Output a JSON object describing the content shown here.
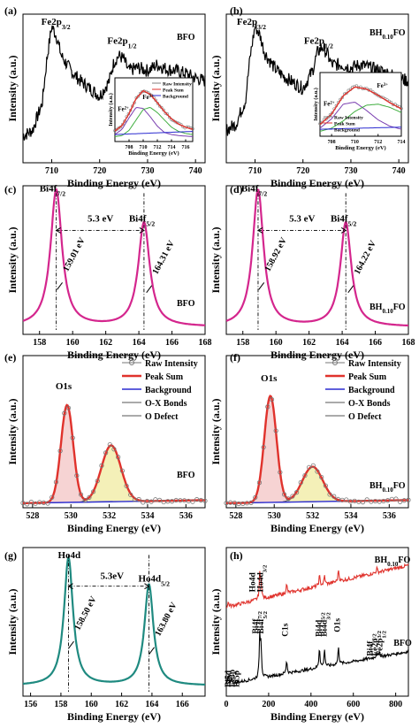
{
  "figure": {
    "axis_xlabel": "Binding Energy (eV)",
    "axis_ylabel": "Intensity (a.u.)"
  },
  "chart_data": [
    {
      "id": "a",
      "type": "line",
      "panel_label": "(a)",
      "sample_label": "BFO",
      "xlabel": "Binding Energy (eV)",
      "ylabel": "Intensity (a.u.)",
      "xlim": [
        704,
        742
      ],
      "ylim": [
        0,
        1
      ],
      "xticks": [
        710,
        720,
        730,
        740
      ],
      "annotations": [
        {
          "text": "Fe2p",
          "sub": "3/2",
          "x": 707.8,
          "y": 0.93
        },
        {
          "text": "Fe2p",
          "sub": "1/2",
          "x": 721.6,
          "y": 0.8
        }
      ],
      "series": [
        {
          "color": "#000000",
          "noise": 0.045,
          "x": [
            704,
            706,
            708,
            709,
            710,
            711,
            712,
            714,
            716,
            718,
            720,
            722,
            723,
            724,
            725,
            726,
            728,
            730,
            732,
            734,
            736,
            738,
            740,
            742
          ],
          "y": [
            0.18,
            0.22,
            0.4,
            0.7,
            0.92,
            0.85,
            0.72,
            0.62,
            0.55,
            0.5,
            0.45,
            0.55,
            0.68,
            0.72,
            0.7,
            0.62,
            0.64,
            0.62,
            0.66,
            0.63,
            0.62,
            0.6,
            0.57,
            0.55
          ]
        }
      ],
      "inset": {
        "xlim": [
          706,
          717
        ],
        "xticks": [
          708,
          710,
          712,
          714,
          716
        ],
        "xlabel": "Binding Energy (eV)",
        "ylabel": "Intensity (a.u.)",
        "legend": [
          "Raw Intensity",
          "Peak Sum",
          "Background"
        ],
        "labels": [
          {
            "text": "Fe",
            "sup": "2+",
            "x": 706.4,
            "y": 0.55
          },
          {
            "text": "Fe",
            "sup": "3+",
            "x": 709.9,
            "y": 0.78
          }
        ],
        "curves": [
          {
            "color": "#808080",
            "style": "circles",
            "x": [
              706,
              707,
              708,
              709,
              710,
              711,
              712,
              713,
              714,
              715,
              716,
              717
            ],
            "y": [
              0.18,
              0.28,
              0.5,
              0.8,
              0.95,
              0.88,
              0.72,
              0.55,
              0.4,
              0.3,
              0.24,
              0.2
            ]
          },
          {
            "color": "#e0322c",
            "x": [
              706,
              707,
              708,
              709,
              710,
              711,
              712,
              713,
              714,
              715,
              716,
              717
            ],
            "y": [
              0.17,
              0.27,
              0.5,
              0.79,
              0.94,
              0.87,
              0.71,
              0.54,
              0.4,
              0.3,
              0.24,
              0.2
            ]
          },
          {
            "color": "#7a3fb0",
            "x": [
              706,
              707,
              708,
              709,
              710,
              711,
              712,
              713,
              714,
              715,
              716,
              717
            ],
            "y": [
              0.1,
              0.2,
              0.42,
              0.62,
              0.6,
              0.44,
              0.26,
              0.14,
              0.1,
              0.08,
              0.07,
              0.06
            ]
          },
          {
            "color": "#3fae3f",
            "x": [
              706,
              707,
              708,
              709,
              710,
              711,
              712,
              713,
              714,
              715,
              716,
              717
            ],
            "y": [
              0.06,
              0.08,
              0.18,
              0.38,
              0.58,
              0.62,
              0.52,
              0.38,
              0.24,
              0.16,
              0.12,
              0.1
            ]
          },
          {
            "color": "#2a2ad0",
            "x": [
              706,
              717
            ],
            "y": [
              0.1,
              0.16
            ]
          }
        ]
      }
    },
    {
      "id": "b",
      "type": "line",
      "panel_label": "(b)",
      "sample_label": "BH",
      "sample_label_sub": "0.10",
      "sample_label_tail": "FO",
      "xlabel": "Binding Energy (eV)",
      "ylabel": "Intensity (a.u.)",
      "xlim": [
        704,
        742
      ],
      "ylim": [
        0,
        1
      ],
      "xticks": [
        710,
        720,
        730,
        740
      ],
      "annotations": [
        {
          "text": "Fe2p",
          "sub": "3/2",
          "x": 706.2,
          "y": 0.93
        },
        {
          "text": "Fe2p",
          "sub": "1/2",
          "x": 720.2,
          "y": 0.8
        }
      ],
      "series": [
        {
          "color": "#000000",
          "noise": 0.045,
          "x": [
            704,
            706,
            708,
            709,
            710,
            711,
            712,
            714,
            716,
            718,
            720,
            722,
            723,
            724,
            725,
            726,
            728,
            730,
            732,
            734,
            736,
            738,
            740,
            742
          ],
          "y": [
            0.22,
            0.26,
            0.42,
            0.72,
            0.92,
            0.86,
            0.74,
            0.64,
            0.58,
            0.54,
            0.5,
            0.62,
            0.74,
            0.78,
            0.74,
            0.66,
            0.66,
            0.64,
            0.66,
            0.64,
            0.62,
            0.6,
            0.57,
            0.55
          ]
        }
      ],
      "inset": {
        "xlim": [
          707,
          714
        ],
        "xticks": [
          708,
          710,
          712,
          714
        ],
        "xlabel": "Binding Energy (eV)",
        "ylabel": "Intensity (a.u.)",
        "legend": [
          "Raw Intensity",
          "Peak Sum",
          "Background"
        ],
        "labels": [
          {
            "text": "Fe",
            "sup": "2+",
            "x": 707.3,
            "y": 0.55
          },
          {
            "text": "Fe",
            "sup": "3+",
            "x": 711.9,
            "y": 0.9
          }
        ],
        "curves": [
          {
            "color": "#808080",
            "style": "circles",
            "x": [
              707,
              708,
              709,
              710,
              711,
              712,
              713,
              714
            ],
            "y": [
              0.2,
              0.4,
              0.75,
              0.92,
              0.88,
              0.76,
              0.62,
              0.5
            ]
          },
          {
            "color": "#e0322c",
            "x": [
              707,
              708,
              709,
              710,
              711,
              712,
              713,
              714
            ],
            "y": [
              0.19,
              0.39,
              0.74,
              0.91,
              0.87,
              0.75,
              0.61,
              0.49
            ]
          },
          {
            "color": "#7a3fb0",
            "x": [
              707,
              708,
              709,
              710,
              711,
              712,
              713,
              714
            ],
            "y": [
              0.12,
              0.3,
              0.58,
              0.62,
              0.46,
              0.28,
              0.16,
              0.1
            ]
          },
          {
            "color": "#3fae3f",
            "x": [
              707,
              708,
              709,
              710,
              711,
              712,
              713,
              714
            ],
            "y": [
              0.06,
              0.12,
              0.26,
              0.44,
              0.56,
              0.58,
              0.52,
              0.42
            ]
          },
          {
            "color": "#2a2ad0",
            "x": [
              707,
              714
            ],
            "y": [
              0.1,
              0.14
            ]
          }
        ]
      }
    },
    {
      "id": "c",
      "type": "line",
      "panel_label": "(c)",
      "sample_label": "BFO",
      "xlabel": "Binding Energy (eV)",
      "ylabel": "Intensity (a.u.)",
      "xlim": [
        157,
        168
      ],
      "ylim": [
        0,
        1
      ],
      "xticks": [
        158,
        160,
        162,
        164,
        166,
        168
      ],
      "series": [
        {
          "color": "#d4268d",
          "peaks": [
            {
              "c": 159.01,
              "h": 0.92,
              "w": 0.42
            },
            {
              "c": 164.31,
              "h": 0.7,
              "w": 0.42
            }
          ],
          "base": 0.05
        }
      ],
      "peak_labels": [
        {
          "text": "Bi4f",
          "sub": "7/2",
          "x": 158.0,
          "y": 0.96
        },
        {
          "text": "Bi4f",
          "sub": "5/2",
          "x": 163.4,
          "y": 0.76
        },
        {
          "text": "5.3 eV",
          "x": 160.9,
          "y": 0.76
        }
      ],
      "values": [
        {
          "text": "159.01 eV",
          "x": 159.7,
          "y": 0.42
        },
        {
          "text": "164.31 eV",
          "x": 165.1,
          "y": 0.4
        }
      ],
      "dashed_v": [
        159.01,
        164.31
      ],
      "arrow": [
        159.01,
        164.31,
        0.7
      ]
    },
    {
      "id": "d",
      "type": "line",
      "panel_label": "(d)",
      "sample_label": "BH",
      "sample_label_sub": "0.10",
      "sample_label_tail": "FO",
      "xlabel": "Binding Energy (eV)",
      "ylabel": "Intensity (a.u.)",
      "xlim": [
        157,
        168
      ],
      "ylim": [
        0,
        1
      ],
      "xticks": [
        158,
        160,
        162,
        164,
        166,
        168
      ],
      "series": [
        {
          "color": "#d4268d",
          "peaks": [
            {
              "c": 158.92,
              "h": 0.92,
              "w": 0.4
            },
            {
              "c": 164.22,
              "h": 0.7,
              "w": 0.4
            }
          ],
          "base": 0.05
        }
      ],
      "peak_labels": [
        {
          "text": "Bi4f",
          "sub": "7/2",
          "x": 157.9,
          "y": 0.96
        },
        {
          "text": "Bi4f",
          "sub": "5/2",
          "x": 163.3,
          "y": 0.76
        },
        {
          "text": "5.3 eV",
          "x": 160.8,
          "y": 0.76
        }
      ],
      "values": [
        {
          "text": "158.92 eV",
          "x": 159.6,
          "y": 0.42
        },
        {
          "text": "164.22 eV",
          "x": 165.0,
          "y": 0.4
        }
      ],
      "dashed_v": [
        158.92,
        164.22
      ],
      "arrow": [
        158.92,
        164.22,
        0.7
      ]
    },
    {
      "id": "e",
      "type": "line",
      "panel_label": "(e)",
      "sample_label": "BFO",
      "xlabel": "Binding Energy (eV)",
      "ylabel": "Intensity (a.u.)",
      "xlim": [
        527.5,
        537
      ],
      "ylim": [
        0,
        1
      ],
      "xticks": [
        528,
        530,
        532,
        534,
        536
      ],
      "peak_labels": [
        {
          "text": "O1s",
          "x": 529.2,
          "y": 0.78
        }
      ],
      "legend": [
        "Raw Intensity",
        "Peak Sum",
        "Background",
        "O-X Bonds",
        "O Defect"
      ],
      "components": [
        {
          "c": 529.8,
          "h": 0.64,
          "w": 0.45,
          "fill": "#f6d3d3",
          "stroke": "#555555"
        },
        {
          "c": 532.1,
          "h": 0.37,
          "w": 0.72,
          "fill": "#f4f0b8",
          "stroke": "#555555"
        }
      ],
      "baseline": [
        0.03,
        0.05
      ]
    },
    {
      "id": "f",
      "type": "line",
      "panel_label": "(f)",
      "sample_label": "BH",
      "sample_label_sub": "0.10",
      "sample_label_tail": "FO",
      "xlabel": "Binding Energy (eV)",
      "ylabel": "Intensity (a.u.)",
      "xlim": [
        527.5,
        537
      ],
      "ylim": [
        0,
        1
      ],
      "xticks": [
        528,
        530,
        532,
        534,
        536
      ],
      "peak_labels": [
        {
          "text": "O1s",
          "x": 529.3,
          "y": 0.83
        }
      ],
      "legend": [
        "Raw Intensity",
        "Peak Sum",
        "Background",
        "O-X Bonds",
        "O Defect"
      ],
      "components": [
        {
          "c": 529.8,
          "h": 0.7,
          "w": 0.45,
          "fill": "#f6d3d3",
          "stroke": "#555555"
        },
        {
          "c": 532.0,
          "h": 0.23,
          "w": 0.75,
          "fill": "#f4f0b8",
          "stroke": "#555555"
        }
      ],
      "baseline": [
        0.03,
        0.05
      ]
    },
    {
      "id": "g",
      "type": "line",
      "panel_label": "(g)",
      "xlabel": "Binding Energy (eV)",
      "ylabel": "Intensity (a.u.)",
      "xlim": [
        155.5,
        167.5
      ],
      "ylim": [
        0,
        1
      ],
      "xticks": [
        156,
        158,
        160,
        162,
        164,
        166
      ],
      "series": [
        {
          "color": "#1f8a80",
          "peaks": [
            {
              "c": 158.5,
              "h": 0.86,
              "w": 0.36
            },
            {
              "c": 163.8,
              "h": 0.68,
              "w": 0.36
            }
          ],
          "base": 0.07
        }
      ],
      "peak_labels": [
        {
          "text": "Ho4d",
          "x": 157.8,
          "y": 0.93
        },
        {
          "text": "Ho4d",
          "sub": "5/2",
          "x": 163.1,
          "y": 0.77
        },
        {
          "text": "5.3eV",
          "x": 160.6,
          "y": 0.79
        }
      ],
      "values": [
        {
          "text": "158.50 eV",
          "x": 159.2,
          "y": 0.44
        },
        {
          "text": "163.80 eV",
          "x": 164.5,
          "y": 0.4
        }
      ],
      "dashed_v": [
        158.5,
        163.8
      ],
      "arrow": [
        158.5,
        163.8,
        0.74
      ]
    },
    {
      "id": "h",
      "type": "line",
      "panel_label": "(h)",
      "xlabel": "Binding Energy (eV)",
      "ylabel": "Intensity (a.u.)",
      "xlim": [
        0,
        860
      ],
      "ylim": [
        0,
        1
      ],
      "xticks": [
        0,
        200,
        400,
        600,
        800
      ],
      "series": [
        {
          "name": "BH0.10FO",
          "color": "#e0322c",
          "base": [
            0.6,
            0.88
          ],
          "noise": 0.012,
          "peaks": [
            {
              "c": 10,
              "h": 0.03
            },
            {
              "c": 158,
              "h": 0.16
            },
            {
              "c": 164,
              "h": 0.12
            },
            {
              "c": 285,
              "h": 0.06
            },
            {
              "c": 440,
              "h": 0.07
            },
            {
              "c": 464,
              "h": 0.06
            },
            {
              "c": 530,
              "h": 0.08
            },
            {
              "c": 711,
              "h": 0.03
            }
          ]
        },
        {
          "name": "BFO",
          "color": "#000000",
          "base": [
            0.08,
            0.3
          ],
          "noise": 0.01,
          "peaks": [
            {
              "c": 10,
              "h": 0.05
            },
            {
              "c": 25,
              "h": 0.04
            },
            {
              "c": 158,
              "h": 0.28
            },
            {
              "c": 164,
              "h": 0.22
            },
            {
              "c": 285,
              "h": 0.09
            },
            {
              "c": 440,
              "h": 0.14
            },
            {
              "c": 464,
              "h": 0.12
            },
            {
              "c": 530,
              "h": 0.12
            },
            {
              "c": 711,
              "h": 0.04
            },
            {
              "c": 724,
              "h": 0.03
            }
          ]
        }
      ],
      "peak_labels": [
        {
          "text": "Ho4d",
          "x": 135,
          "y": 0.7,
          "rot": true
        },
        {
          "text": "Ho4d",
          "sub": "3/2",
          "x": 174,
          "y": 0.7,
          "rot": true
        },
        {
          "text": "Bi4f",
          "sub": "7/2",
          "x": 150,
          "y": 0.42,
          "rot": true
        },
        {
          "text": "Bi4f",
          "sub": "5/2",
          "x": 175,
          "y": 0.42,
          "rot": true
        },
        {
          "text": "C1s",
          "x": 290,
          "y": 0.4,
          "rot": true
        },
        {
          "text": "Bi4d",
          "sub": "5/2",
          "x": 448,
          "y": 0.4,
          "rot": true
        },
        {
          "text": "Bi4d",
          "sub": "3/2",
          "x": 473,
          "y": 0.4,
          "rot": true
        },
        {
          "text": "O1s",
          "x": 537,
          "y": 0.43,
          "rot": true
        },
        {
          "text": "Bi4f",
          "sub": "7/2",
          "x": 690,
          "y": 0.27,
          "rot": true
        },
        {
          "text": "Fe2p",
          "sub": "3/2",
          "x": 713,
          "y": 0.27,
          "rot": true
        },
        {
          "text": "Fe2p",
          "sub": "1/2",
          "x": 737,
          "y": 0.27,
          "rot": true
        },
        {
          "text": "Bi5d",
          "x": 20,
          "y": 0.06,
          "rot": true
        },
        {
          "text": "Fe3p",
          "x": 40,
          "y": 0.06,
          "rot": true
        },
        {
          "text": "Bi5p",
          "x": 60,
          "y": 0.06,
          "rot": true
        }
      ],
      "series_labels": [
        {
          "text": "BH",
          "sub": "0.10",
          "tail": "FO",
          "x": 700,
          "y": 0.9
        },
        {
          "text": "BFO",
          "x": 790,
          "y": 0.34
        }
      ]
    }
  ]
}
